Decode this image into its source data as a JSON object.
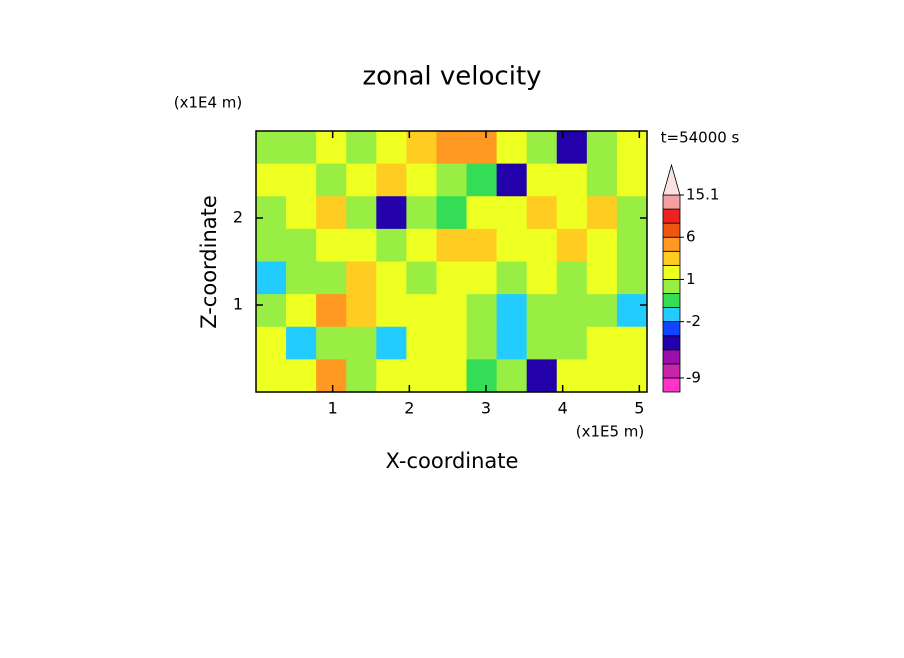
{
  "chart_data": {
    "type": "contour",
    "title": "zonal velocity",
    "x_label": "X-coordinate",
    "y_label": "Z-coordinate",
    "x_unit": "(x1E5 m)",
    "y_unit": "(x1E4 m)",
    "annotation": "t=54000 s",
    "xlim": [
      0,
      5.1
    ],
    "ylim": [
      0,
      3
    ],
    "xticks": [
      1,
      2,
      3,
      4,
      5
    ],
    "yticks": [
      1,
      2
    ],
    "z": [
      [
        0,
        0.5,
        1.5,
        0.5,
        1.5,
        2.5,
        4,
        3,
        1,
        0.5,
        -4,
        0,
        1
      ],
      [
        1.5,
        1,
        0.5,
        1.5,
        2.5,
        1,
        0.5,
        -1,
        -3.5,
        1,
        1.5,
        0.5,
        1.5
      ],
      [
        0.5,
        1.5,
        2.5,
        0.5,
        -3.5,
        0.5,
        -1,
        1,
        1.5,
        2.5,
        1,
        2,
        0.5
      ],
      [
        0.5,
        0.5,
        1.5,
        1.5,
        0.5,
        1.5,
        2.5,
        2,
        1.5,
        1,
        2.5,
        1.5,
        0.5
      ],
      [
        -1.5,
        0.5,
        0.5,
        2.5,
        1.5,
        0.5,
        1.5,
        1.5,
        0.5,
        1.5,
        0.5,
        1.5,
        0.5
      ],
      [
        0.5,
        1.5,
        3,
        2.5,
        1.5,
        1.5,
        1.5,
        0.5,
        -1.5,
        0.5,
        0.5,
        0.5,
        -1.5
      ],
      [
        1.5,
        -1.5,
        0.5,
        0.5,
        -1.5,
        1.5,
        1.5,
        0.5,
        -1.5,
        0.5,
        0.5,
        1.5,
        1.5
      ],
      [
        1.5,
        1.5,
        4,
        0.5,
        1.5,
        1.5,
        1.5,
        -0.5,
        0.5,
        -3.5,
        1.5,
        1.5,
        1.5
      ]
    ],
    "colorbar": {
      "levels": [
        -12,
        -9,
        -7,
        -5,
        -3,
        -2,
        -1,
        0,
        1,
        2,
        3,
        6,
        9,
        12,
        15.1
      ],
      "colors": [
        "#ff33cc",
        "#cc22aa",
        "#9911aa",
        "#2200aa",
        "#1144ff",
        "#22ccff",
        "#33dd55",
        "#99ee44",
        "#eeff22",
        "#ffcc22",
        "#ff9922",
        "#ee5511",
        "#ee2222",
        "#f4a0a0"
      ],
      "ticks": [
        15.1,
        6,
        1,
        -2,
        -9
      ]
    }
  }
}
